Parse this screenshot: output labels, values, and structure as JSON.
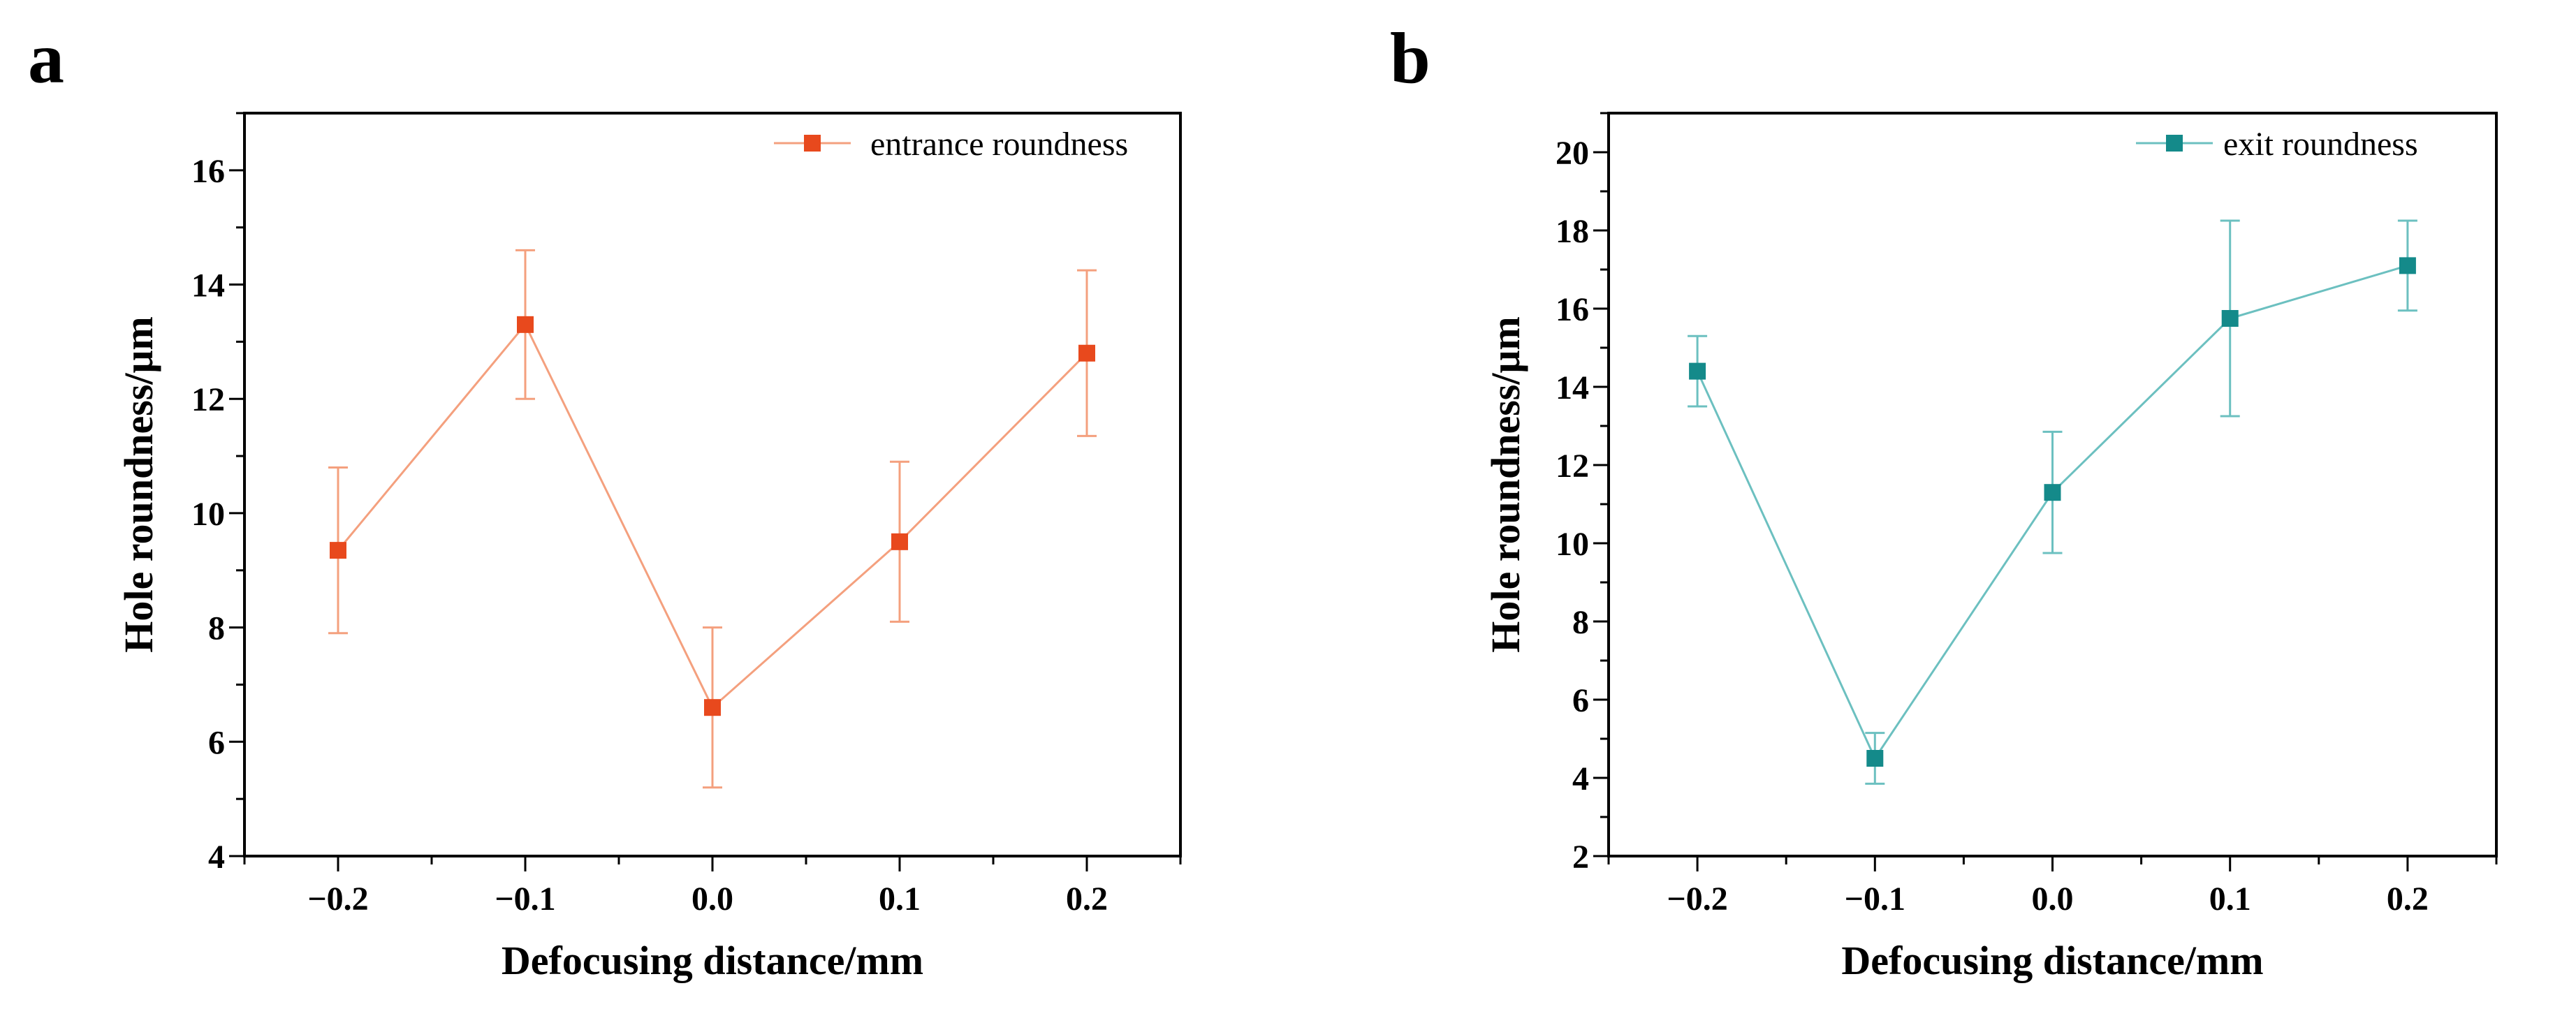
{
  "chart_data": [
    {
      "panel_label": "a",
      "type": "line",
      "xlabel": "Defocusing distance/mm",
      "ylabel": "Hole roundness/μm",
      "xlim": [
        -0.25,
        0.25
      ],
      "ylim": [
        4,
        17
      ],
      "x_ticks": [
        -0.2,
        -0.1,
        0.0,
        0.1,
        0.2
      ],
      "x_tick_labels": [
        "−0.2",
        "−0.1",
        "0.0",
        "0.1",
        "0.2"
      ],
      "y_ticks": [
        4,
        6,
        8,
        10,
        12,
        14,
        16
      ],
      "y_tick_labels": [
        "4",
        "6",
        "8",
        "10",
        "12",
        "14",
        "16"
      ],
      "legend_position": "top-right",
      "series": [
        {
          "name": "entrance roundness",
          "color": "#e8491d",
          "line_color": "#f4a07e",
          "marker": "square",
          "x": [
            -0.2,
            -0.1,
            0.0,
            0.1,
            0.2
          ],
          "values": [
            9.35,
            13.3,
            6.6,
            9.5,
            12.8
          ],
          "error_low": [
            1.45,
            1.3,
            1.4,
            1.4,
            1.45
          ],
          "error_high": [
            1.45,
            1.3,
            1.4,
            1.4,
            1.45
          ]
        }
      ]
    },
    {
      "panel_label": "b",
      "type": "line",
      "xlabel": "Defocusing distance/mm",
      "ylabel": "Hole roundness/μm",
      "xlim": [
        -0.25,
        0.25
      ],
      "ylim": [
        2,
        21
      ],
      "x_ticks": [
        -0.2,
        -0.1,
        0.0,
        0.1,
        0.2
      ],
      "x_tick_labels": [
        "−0.2",
        "−0.1",
        "0.0",
        "0.1",
        "0.2"
      ],
      "y_ticks": [
        2,
        4,
        6,
        8,
        10,
        12,
        14,
        16,
        18,
        20
      ],
      "y_tick_labels": [
        "2",
        "4",
        "6",
        "8",
        "10",
        "12",
        "14",
        "16",
        "18",
        "20"
      ],
      "legend_position": "top-right",
      "series": [
        {
          "name": "exit roundness",
          "color": "#148a8a",
          "line_color": "#6cc0c0",
          "marker": "square",
          "x": [
            -0.2,
            -0.1,
            0.0,
            0.1,
            0.2
          ],
          "values": [
            14.4,
            4.5,
            11.3,
            15.75,
            17.1
          ],
          "error_low": [
            0.9,
            0.65,
            1.55,
            2.5,
            1.15
          ],
          "error_high": [
            0.9,
            0.65,
            1.55,
            2.5,
            1.15
          ]
        }
      ]
    }
  ]
}
